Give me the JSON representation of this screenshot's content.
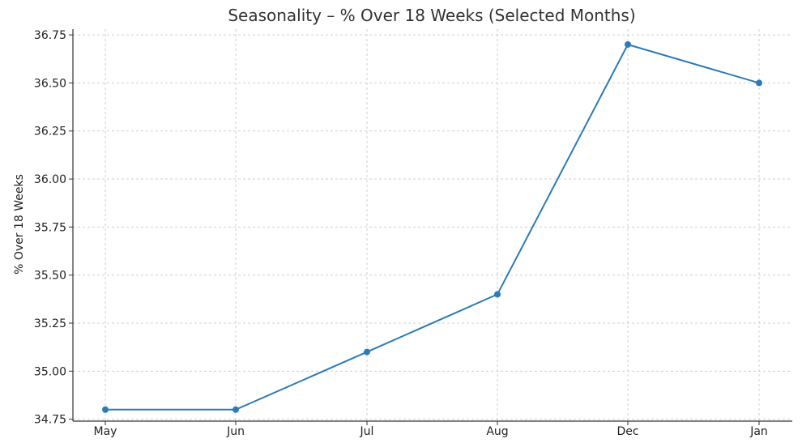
{
  "chart_data": {
    "type": "line",
    "title": "Seasonality – % Over 18 Weeks (Selected Months)",
    "xlabel": "",
    "ylabel": "% Over 18 Weeks",
    "categories": [
      "May",
      "Jun",
      "Jul",
      "Aug",
      "Dec",
      "Jan"
    ],
    "series": [
      {
        "values": [
          34.8,
          34.8,
          35.1,
          35.4,
          36.7,
          36.5
        ]
      }
    ],
    "ylim": [
      34.74,
      36.78
    ],
    "yticks": [
      34.75,
      35.0,
      35.25,
      35.5,
      35.75,
      36.0,
      36.25,
      36.5,
      36.75
    ],
    "ytick_labels": [
      "34.75",
      "35.00",
      "35.25",
      "35.50",
      "35.75",
      "36.00",
      "36.25",
      "36.50",
      "36.75"
    ],
    "grid": true,
    "line_color": "#2c7bb6"
  }
}
